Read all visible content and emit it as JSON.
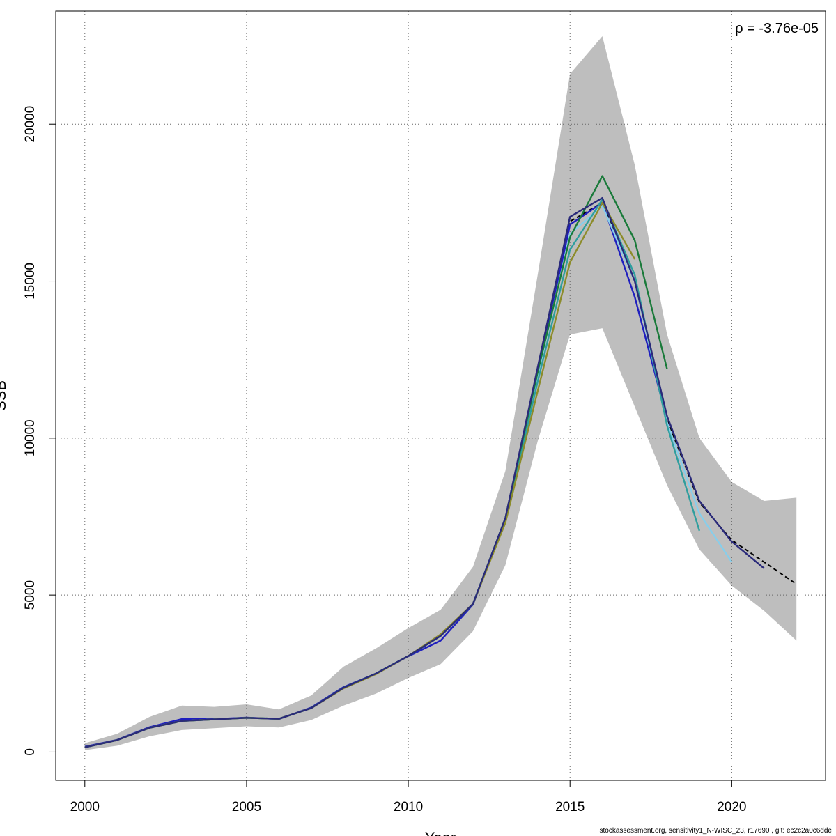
{
  "chart_data": {
    "type": "line",
    "title": "",
    "xlabel": "Year",
    "ylabel": "SSB",
    "xlim": [
      1999.1,
      2022.9
    ],
    "ylim": [
      -900,
      23600
    ],
    "x_ticks": [
      2000,
      2005,
      2010,
      2015,
      2020
    ],
    "y_ticks": [
      0,
      5000,
      10000,
      15000,
      20000
    ],
    "grid": true,
    "annotation": "ρ = -3.76e-05",
    "confidence_band": {
      "x": [
        2000,
        2001,
        2002,
        2003,
        2004,
        2005,
        2006,
        2007,
        2008,
        2009,
        2010,
        2011,
        2012,
        2013,
        2014,
        2015,
        2016,
        2017,
        2018,
        2019,
        2020,
        2021,
        2022
      ],
      "lower": [
        60,
        200,
        500,
        700,
        760,
        820,
        780,
        1020,
        1480,
        1860,
        2360,
        2800,
        3850,
        5950,
        9900,
        13300,
        13500,
        11000,
        8500,
        6450,
        5300,
        4500,
        3550
      ],
      "upper": [
        280,
        580,
        1120,
        1480,
        1440,
        1520,
        1360,
        1800,
        2720,
        3300,
        3950,
        4530,
        5900,
        8950,
        15200,
        21600,
        22800,
        18700,
        13300,
        10000,
        8600,
        8000,
        8100
      ],
      "color": "#bebebe"
    },
    "series": [
      {
        "color": "#000000",
        "dashed": true,
        "x": [
          2000,
          2001,
          2002,
          2003,
          2004,
          2005,
          2006,
          2007,
          2008,
          2009,
          2010,
          2011,
          2012,
          2013,
          2014,
          2015,
          2016,
          2017,
          2018,
          2019,
          2020,
          2021,
          2022
        ],
        "values": [
          150,
          380,
          770,
          990,
          1040,
          1090,
          1060,
          1400,
          2050,
          2500,
          3060,
          3700,
          4720,
          7450,
          12200,
          16900,
          17500,
          15000,
          10600,
          7950,
          6750,
          6050,
          5350
        ]
      },
      {
        "color": "#1f1fbe",
        "x": [
          2000,
          2001,
          2002,
          2003,
          2004,
          2005,
          2006,
          2007,
          2008,
          2009,
          2010,
          2011,
          2012,
          2013,
          2014,
          2015,
          2016,
          2017,
          2018
        ],
        "values": [
          170,
          390,
          790,
          1050,
          1050,
          1100,
          1050,
          1420,
          2070,
          2500,
          3050,
          3550,
          4700,
          7400,
          12000,
          16800,
          17500,
          14500,
          10600
        ]
      },
      {
        "color": "#87ceeb",
        "x": [
          2000,
          2001,
          2002,
          2003,
          2004,
          2005,
          2006,
          2007,
          2008,
          2009,
          2010,
          2011,
          2012,
          2013,
          2014,
          2015,
          2016,
          2017,
          2018,
          2019,
          2020
        ],
        "values": [
          150,
          380,
          770,
          990,
          1040,
          1090,
          1060,
          1400,
          2050,
          2500,
          3060,
          3700,
          4720,
          7450,
          12000,
          16500,
          17400,
          15000,
          10500,
          7600,
          6050
        ]
      },
      {
        "color": "#2e9e9e",
        "x": [
          2000,
          2001,
          2002,
          2003,
          2004,
          2005,
          2006,
          2007,
          2008,
          2009,
          2010,
          2011,
          2012,
          2013,
          2014,
          2015,
          2016,
          2017,
          2018,
          2019
        ],
        "values": [
          150,
          380,
          770,
          990,
          1040,
          1090,
          1060,
          1400,
          2050,
          2500,
          3060,
          3700,
          4720,
          7350,
          11800,
          16000,
          17600,
          15200,
          10400,
          7050
        ]
      },
      {
        "color": "#1a7a3a",
        "x": [
          2000,
          2001,
          2002,
          2003,
          2004,
          2005,
          2006,
          2007,
          2008,
          2009,
          2010,
          2011,
          2012,
          2013,
          2014,
          2015,
          2016,
          2017,
          2018
        ],
        "values": [
          150,
          380,
          770,
          990,
          1040,
          1090,
          1060,
          1400,
          2050,
          2500,
          3060,
          3700,
          4720,
          7450,
          12100,
          16400,
          18350,
          16300,
          12200
        ]
      },
      {
        "color": "#8c8c2a",
        "x": [
          2000,
          2001,
          2002,
          2003,
          2004,
          2005,
          2006,
          2007,
          2008,
          2009,
          2010,
          2011,
          2012,
          2013,
          2014,
          2015,
          2016,
          2017
        ],
        "values": [
          150,
          380,
          770,
          990,
          1040,
          1090,
          1060,
          1400,
          2030,
          2480,
          3060,
          3750,
          4720,
          7300,
          11500,
          15600,
          17500,
          15700
        ]
      },
      {
        "color": "#2a2a7a",
        "x": [
          2000,
          2001,
          2002,
          2003,
          2004,
          2005,
          2006,
          2007,
          2008,
          2009,
          2010,
          2011,
          2012,
          2013,
          2014,
          2015,
          2016,
          2017,
          2018,
          2019,
          2020,
          2021
        ],
        "values": [
          150,
          380,
          770,
          990,
          1040,
          1090,
          1060,
          1400,
          2050,
          2500,
          3060,
          3700,
          4720,
          7450,
          12250,
          17050,
          17650,
          15000,
          10700,
          8000,
          6700,
          5850
        ]
      }
    ]
  },
  "footer": {
    "text": "stockassessment.org, sensitivity1_N-WISC_23, r17690 , git: ec2c2a0c6dde"
  }
}
